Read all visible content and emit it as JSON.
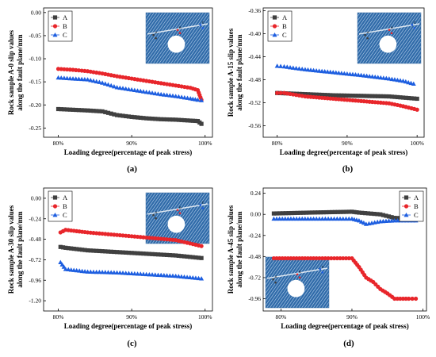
{
  "colors": {
    "A": "#404040",
    "B": "#e8262b",
    "C": "#1d5ee0"
  },
  "chart_data": [
    {
      "panel_label": "(a)",
      "type": "scatter",
      "ylabel_lines": [
        "Rock sample A-0 slip values",
        "along the fault plane/mm"
      ],
      "xlabel": "Loading degree(percentage of peak stress)",
      "xlim": [
        78,
        101
      ],
      "ylim": [
        -0.27,
        0.01
      ],
      "y_inverted": true,
      "xticks": [
        80,
        90,
        100
      ],
      "xtick_labels": [
        "80%",
        "90%",
        "100%"
      ],
      "yticks": [
        0.0,
        -0.05,
        -0.1,
        -0.15,
        -0.2,
        -0.25
      ],
      "ytick_labels": [
        "0.00",
        "-0.05",
        "-0.10",
        "-0.15",
        "-0.20",
        "-0.25"
      ],
      "legend": [
        "A",
        "B",
        "C"
      ],
      "legend_pos": "top-left",
      "inset_pos": "top-right",
      "inset_labels": [
        "A",
        "B",
        "C"
      ],
      "series": [
        {
          "name": "A",
          "marker": "square",
          "points": [
            [
              80,
              -0.209
            ],
            [
              84,
              -0.212
            ],
            [
              86,
              -0.214
            ],
            [
              88,
              -0.222
            ],
            [
              90,
              -0.226
            ],
            [
              92,
              -0.229
            ],
            [
              94,
              -0.231
            ],
            [
              96,
              -0.232
            ],
            [
              98,
              -0.234
            ],
            [
              99,
              -0.235
            ],
            [
              99.5,
              -0.241
            ]
          ]
        },
        {
          "name": "B",
          "marker": "circle",
          "points": [
            [
              80,
              -0.122
            ],
            [
              82,
              -0.124
            ],
            [
              84,
              -0.127
            ],
            [
              86,
              -0.132
            ],
            [
              88,
              -0.138
            ],
            [
              90,
              -0.143
            ],
            [
              92,
              -0.148
            ],
            [
              94,
              -0.153
            ],
            [
              96,
              -0.158
            ],
            [
              98,
              -0.163
            ],
            [
              99,
              -0.168
            ],
            [
              99.5,
              -0.189
            ]
          ]
        },
        {
          "name": "C",
          "marker": "triangle",
          "points": [
            [
              80,
              -0.141
            ],
            [
              82,
              -0.143
            ],
            [
              84,
              -0.145
            ],
            [
              86,
              -0.152
            ],
            [
              88,
              -0.162
            ],
            [
              90,
              -0.167
            ],
            [
              92,
              -0.172
            ],
            [
              94,
              -0.177
            ],
            [
              96,
              -0.181
            ],
            [
              98,
              -0.186
            ],
            [
              99,
              -0.189
            ],
            [
              99.5,
              -0.19
            ]
          ]
        }
      ]
    },
    {
      "panel_label": "(b)",
      "type": "scatter",
      "ylabel_lines": [
        "Rock sample A-15 slip values",
        "along the fault plane/mm"
      ],
      "xlabel": "Loading degree(percentage of peak stress)",
      "xlim": [
        78,
        101
      ],
      "ylim": [
        -0.58,
        -0.355
      ],
      "y_inverted": true,
      "xticks": [
        80,
        90,
        100
      ],
      "xtick_labels": [
        "80%",
        "90%",
        "100%"
      ],
      "yticks": [
        -0.36,
        -0.4,
        -0.44,
        -0.48,
        -0.52,
        -0.56
      ],
      "ytick_labels": [
        "-0.36",
        "-0.40",
        "-0.44",
        "-0.48",
        "-0.52",
        "-0.56"
      ],
      "legend": [
        "A",
        "B",
        "C"
      ],
      "legend_pos": "top-left",
      "inset_pos": "top-right",
      "inset_labels": [
        "A",
        "B",
        "C"
      ],
      "series": [
        {
          "name": "A",
          "marker": "square",
          "points": [
            [
              80,
              -0.503
            ],
            [
              84,
              -0.505
            ],
            [
              88,
              -0.507
            ],
            [
              92,
              -0.508
            ],
            [
              96,
              -0.509
            ],
            [
              98,
              -0.511
            ],
            [
              100,
              -0.513
            ]
          ]
        },
        {
          "name": "B",
          "marker": "circle",
          "points": [
            [
              80,
              -0.503
            ],
            [
              81,
              -0.503
            ],
            [
              84,
              -0.509
            ],
            [
              88,
              -0.513
            ],
            [
              92,
              -0.517
            ],
            [
              96,
              -0.521
            ],
            [
              98,
              -0.526
            ],
            [
              100,
              -0.532
            ]
          ]
        },
        {
          "name": "C",
          "marker": "triangle",
          "points": [
            [
              80,
              -0.456
            ],
            [
              81,
              -0.457
            ],
            [
              84,
              -0.462
            ],
            [
              88,
              -0.467
            ],
            [
              92,
              -0.472
            ],
            [
              96,
              -0.478
            ],
            [
              98,
              -0.482
            ],
            [
              99.5,
              -0.487
            ]
          ]
        }
      ]
    },
    {
      "panel_label": "(c)",
      "type": "scatter",
      "ylabel_lines": [
        "Rock sample A-30 slip values",
        "along the fault plane/mm"
      ],
      "xlabel": "Loading degree(percentage of peak stress)",
      "xlim": [
        78,
        101
      ],
      "ylim": [
        -1.32,
        0.12
      ],
      "y_inverted": true,
      "xticks": [
        80,
        90,
        100
      ],
      "xtick_labels": [
        "80%",
        "90%",
        "100%"
      ],
      "yticks": [
        0.0,
        -0.24,
        -0.48,
        -0.72,
        -0.96,
        -1.2
      ],
      "ytick_labels": [
        "0.00",
        "-0.24",
        "-0.48",
        "-0.72",
        "-0.96",
        "-1.20"
      ],
      "legend": [
        "A",
        "B",
        "C"
      ],
      "legend_pos": "top-left",
      "inset_pos": "top-right",
      "inset_labels": [
        "A",
        "B",
        "C"
      ],
      "series": [
        {
          "name": "A",
          "marker": "square",
          "points": [
            [
              80.3,
              -0.57
            ],
            [
              81,
              -0.58
            ],
            [
              84,
              -0.61
            ],
            [
              88,
              -0.63
            ],
            [
              92,
              -0.65
            ],
            [
              96,
              -0.67
            ],
            [
              99.5,
              -0.7
            ]
          ]
        },
        {
          "name": "B",
          "marker": "circle",
          "points": [
            [
              80.3,
              -0.4
            ],
            [
              81,
              -0.37
            ],
            [
              84,
              -0.4
            ],
            [
              88,
              -0.43
            ],
            [
              92,
              -0.46
            ],
            [
              96,
              -0.49
            ],
            [
              99.5,
              -0.56
            ]
          ]
        },
        {
          "name": "C",
          "marker": "triangle",
          "points": [
            [
              80.3,
              -0.75
            ],
            [
              81,
              -0.83
            ],
            [
              84,
              -0.86
            ],
            [
              88,
              -0.87
            ],
            [
              92,
              -0.89
            ],
            [
              96,
              -0.91
            ],
            [
              99.5,
              -0.94
            ]
          ]
        }
      ]
    },
    {
      "panel_label": "(d)",
      "type": "scatter",
      "ylabel_lines": [
        "Rock sample A-45 slip values",
        "along the fault plane/mm"
      ],
      "xlabel": "Loading degree(percentage of peak stress)",
      "xlim": [
        77.5,
        100.5
      ],
      "ylim": [
        -1.1,
        0.3
      ],
      "y_inverted": true,
      "xticks": [
        80,
        90,
        100
      ],
      "xtick_labels": [
        "80%",
        "90%",
        "100%"
      ],
      "yticks": [
        0.24,
        0.0,
        -0.24,
        -0.48,
        -0.72,
        -0.96
      ],
      "ytick_labels": [
        "0.24",
        "0.00",
        "-0.24",
        "-0.48",
        "-0.72",
        "-0.96"
      ],
      "legend": [
        "A",
        "B",
        "C"
      ],
      "legend_pos": "top-right",
      "inset_pos": "bottom-left",
      "inset_labels": [
        "A",
        "B",
        "C"
      ],
      "series": [
        {
          "name": "A",
          "marker": "square",
          "points": [
            [
              79,
              0.01
            ],
            [
              84,
              0.02
            ],
            [
              90,
              0.03
            ],
            [
              91,
              0.02
            ],
            [
              94,
              0.0
            ],
            [
              96,
              -0.04
            ],
            [
              99,
              -0.05
            ]
          ]
        },
        {
          "name": "B",
          "marker": "circle",
          "points": [
            [
              79,
              -0.5
            ],
            [
              85,
              -0.5
            ],
            [
              90,
              -0.5
            ],
            [
              91,
              -0.6
            ],
            [
              92,
              -0.72
            ],
            [
              93,
              -0.77
            ],
            [
              94,
              -0.85
            ],
            [
              95,
              -0.9
            ],
            [
              96,
              -0.96
            ],
            [
              98,
              -0.96
            ],
            [
              99,
              -0.96
            ]
          ]
        },
        {
          "name": "C",
          "marker": "triangle",
          "points": [
            [
              79,
              -0.05
            ],
            [
              85,
              -0.05
            ],
            [
              90,
              -0.05
            ],
            [
              91,
              -0.07
            ],
            [
              92,
              -0.11
            ],
            [
              94,
              -0.08
            ],
            [
              96,
              -0.07
            ],
            [
              99,
              -0.07
            ]
          ]
        }
      ]
    }
  ]
}
